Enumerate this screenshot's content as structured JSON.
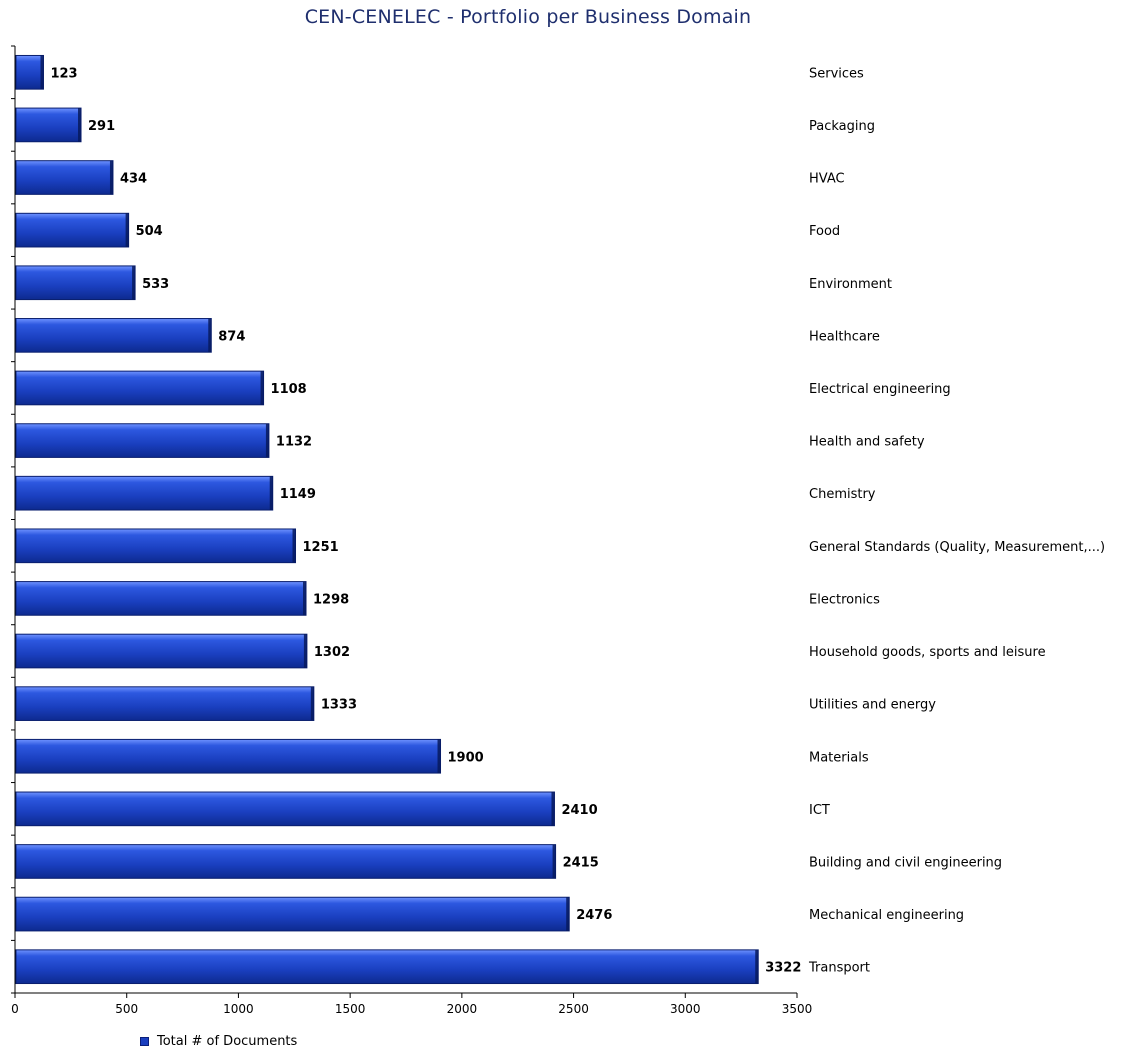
{
  "chart_data": {
    "type": "bar",
    "orientation": "horizontal",
    "title": "CEN-CENELEC - Portfolio per Business Domain",
    "categories": [
      "Services",
      "Packaging",
      "HVAC",
      "Food",
      "Environment",
      "Healthcare",
      "Electrical engineering",
      "Health and safety",
      "Chemistry",
      "General Standards (Quality, Measurement,...)",
      "Electronics",
      "Household goods, sports and leisure",
      "Utilities and energy",
      "Materials",
      "ICT",
      "Building and civil engineering",
      "Mechanical engineering",
      "Transport"
    ],
    "series": [
      {
        "name": "Total # of Documents",
        "values": [
          123,
          291,
          434,
          504,
          533,
          874,
          1108,
          1132,
          1149,
          1251,
          1298,
          1302,
          1333,
          1900,
          2410,
          2415,
          2476,
          3322
        ]
      }
    ],
    "xlim": [
      0,
      3500
    ],
    "xticks": [
      0,
      500,
      1000,
      1500,
      2000,
      2500,
      3000,
      3500
    ],
    "legend_position": "bottom-left",
    "grid": false,
    "bar_color": "#1a3fbf"
  }
}
